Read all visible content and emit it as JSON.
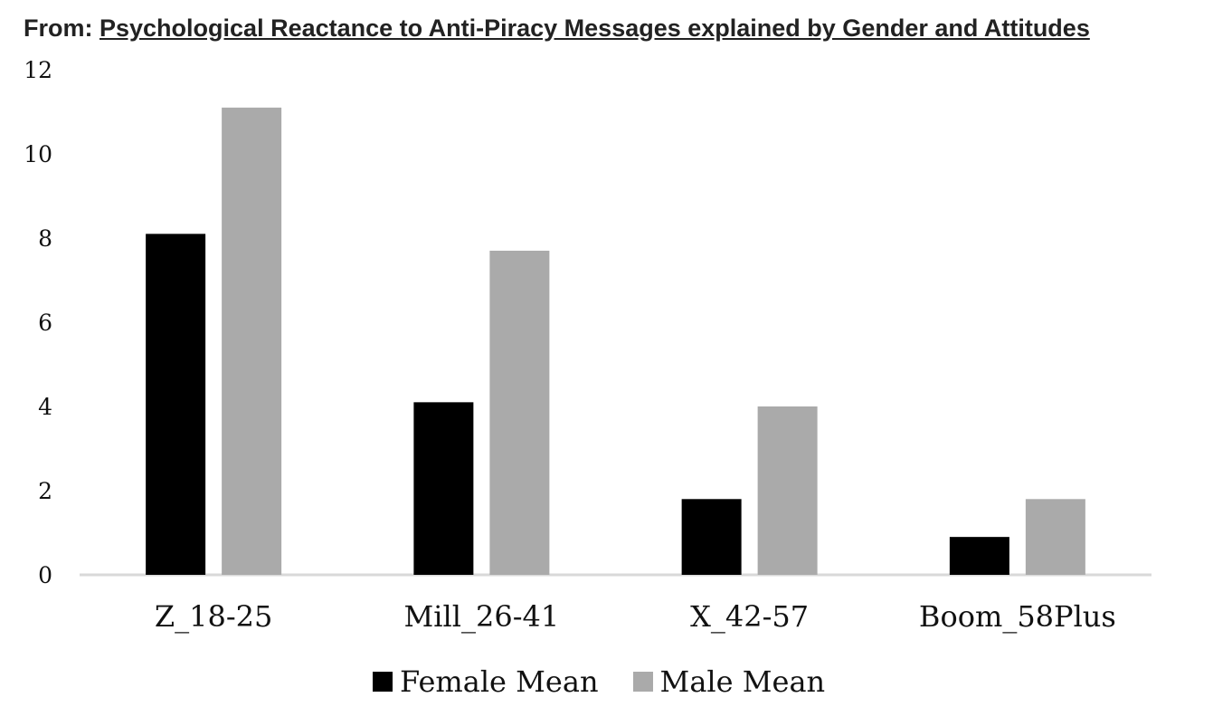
{
  "header": {
    "prefix": "From: ",
    "source_title": "Psychological Reactance to Anti-Piracy Messages explained by Gender and Attitudes"
  },
  "chart_data": {
    "type": "bar",
    "title": "",
    "xlabel": "",
    "ylabel": "",
    "categories": [
      "Z_18-25",
      "Mill_26-41",
      "X_42-57",
      "Boom_58Plus"
    ],
    "series": [
      {
        "name": "Female Mean",
        "color": "#000000",
        "values": [
          8.1,
          4.1,
          1.8,
          0.9
        ]
      },
      {
        "name": "Male Mean",
        "color": "#aaaaaa",
        "values": [
          11.1,
          7.7,
          4.0,
          1.8
        ]
      }
    ],
    "ylim": [
      0,
      12
    ],
    "yticks": [
      "0",
      "2",
      "4",
      "6",
      "8",
      "10",
      "12"
    ],
    "grid": false,
    "legend_position": "bottom"
  }
}
